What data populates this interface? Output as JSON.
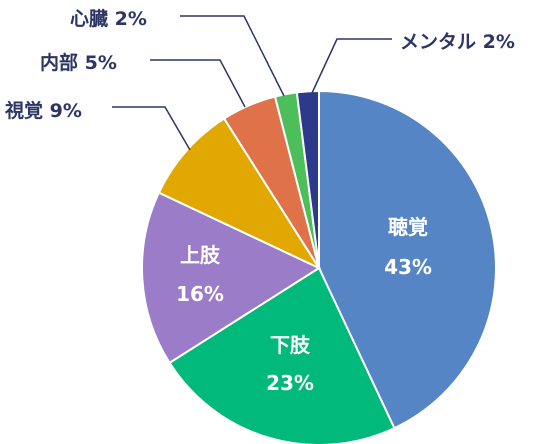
{
  "chart_data": {
    "type": "pie",
    "slices": [
      {
        "label": "聴覚",
        "value": 43,
        "value_text": "43%",
        "color": "#5585c4",
        "label_placement": "inside"
      },
      {
        "label": "下肢",
        "value": 23,
        "value_text": "23%",
        "color": "#00b97a",
        "label_placement": "inside"
      },
      {
        "label": "上肢",
        "value": 16,
        "value_text": "16%",
        "color": "#9a7cc8",
        "label_placement": "inside"
      },
      {
        "label": "視覚",
        "value": 9,
        "value_text": "9%",
        "color": "#e0a800",
        "label_placement": "outside"
      },
      {
        "label": "内部",
        "value": 5,
        "value_text": "5%",
        "color": "#e0724a",
        "label_placement": "outside"
      },
      {
        "label": "心臓",
        "value": 2,
        "value_text": "2%",
        "color": "#4dbf5a",
        "label_placement": "outside"
      },
      {
        "label": "メンタル",
        "value": 2,
        "value_text": "2%",
        "color": "#2d3a8c",
        "label_placement": "outside"
      }
    ],
    "start": "12 o'clock",
    "direction": "clockwise",
    "legend": "none"
  }
}
